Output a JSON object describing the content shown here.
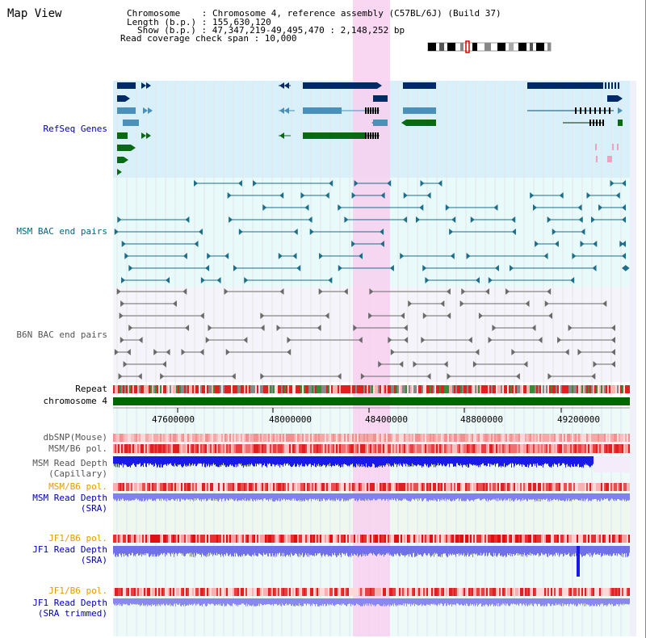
{
  "view_title": "Map View",
  "info": {
    "chromosome_line": "Chromosome    : Chromosome 4, reference assembly (C57BL/6J) (Build 37)",
    "length_line": "Length (b.p.) : 155,630,120",
    "show_line": "Show (b.p.) : 47,347,219-49,495,470 : 2,148,252 bp",
    "coverage_line": "Read coverage check span : 10,000"
  },
  "tracks": {
    "refseq": {
      "label": "RefSeq Genes",
      "color": "#0000b4"
    },
    "msm_bac": {
      "label": "MSM BAC end pairs",
      "color": "#006680"
    },
    "b6n_bac": {
      "label": "B6N BAC end pairs",
      "color": "#555555"
    },
    "repeat": {
      "label": "Repeat",
      "color": "#000000"
    },
    "chromosome": {
      "label": "chromosome 4",
      "color": "#000000"
    },
    "dbsnp": {
      "label": "dbSNP(Mouse)",
      "color": "#555555"
    },
    "msm_b6_pol": {
      "label": "MSM/B6 pol.",
      "color": "#555555"
    },
    "msm_depth_cap": {
      "label1": "MSM Read Depth",
      "label2": "(Capillary)",
      "color": "#555555"
    },
    "msm_b6_pol2": {
      "label": "MSM/B6 pol.",
      "color": "#e69a00"
    },
    "msm_depth_sra": {
      "label1": "MSM Read Depth",
      "label2": "(SRA)",
      "color": "#0000b4"
    },
    "jf1_b6_pol": {
      "label": "JF1/B6 pol.",
      "color": "#e69a00"
    },
    "jf1_depth_sra": {
      "label1": "JF1 Read Depth",
      "label2": "(SRA)",
      "color": "#0000b4"
    },
    "jf1_b6_pol2": {
      "label": "JF1/B6 pol.",
      "color": "#e69a00"
    },
    "jf1_depth_trim": {
      "label1": "JF1 Read Depth",
      "label2": "(SRA trimmed)",
      "color": "#0000b4"
    }
  },
  "axis": {
    "ticks": [
      "47600000",
      "48000000",
      "48400000",
      "48800000",
      "49200000"
    ]
  },
  "colors": {
    "highlight": "#f8d0f0",
    "refseq_bg": "#d8f0fa",
    "msm_bg": "#e8fafa",
    "b6n_bg": "#f4f4fa",
    "chromosome_bar": "#006600"
  }
}
